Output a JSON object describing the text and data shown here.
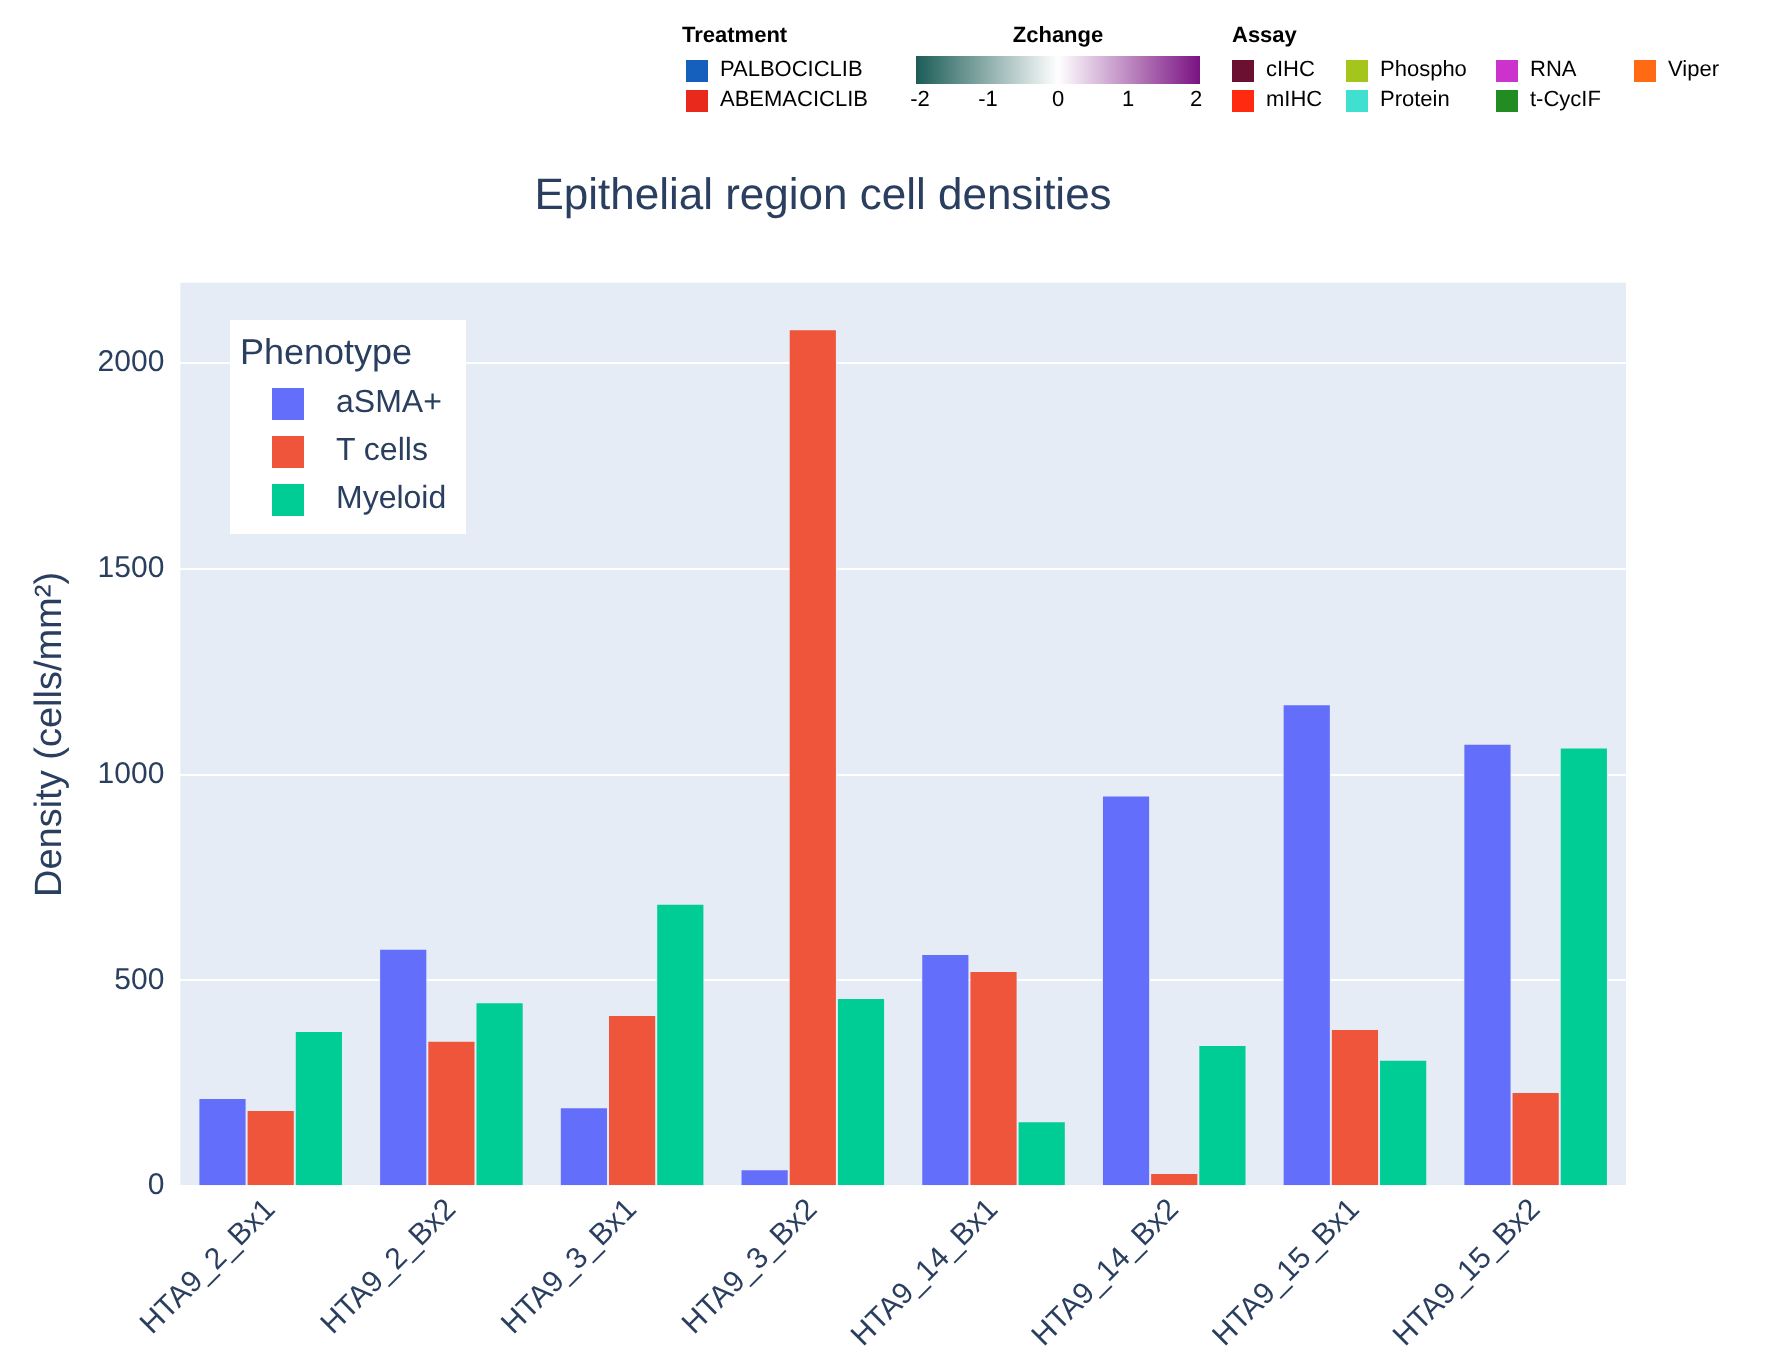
{
  "chart_data": {
    "type": "bar",
    "title": "Epithelial region cell densities",
    "ylabel": "Density (cells/mm²)",
    "legend_title": "Phenotype",
    "categories": [
      "HTA9_2_Bx1",
      "HTA9_2_Bx2",
      "HTA9_3_Bx1",
      "HTA9_3_Bx2",
      "HTA9_14_Bx1",
      "HTA9_14_Bx2",
      "HTA9_15_Bx1",
      "HTA9_15_Bx2"
    ],
    "series": [
      {
        "name": "aSMA+",
        "color": "#636efa",
        "values": [
          214,
          577,
          192,
          41,
          564,
          949,
          1171,
          1075
        ]
      },
      {
        "name": "T cells",
        "color": "#ef553b",
        "values": [
          185,
          353,
          416,
          2082,
          523,
          32,
          382,
          229
        ]
      },
      {
        "name": "Myeloid",
        "color": "#00cc96",
        "values": [
          377,
          447,
          686,
          457,
          158,
          343,
          307,
          1066
        ]
      }
    ],
    "ylim": [
      0,
      2195
    ],
    "yticks": [
      0,
      500,
      1000,
      1500,
      2000
    ],
    "grid": "y",
    "legend": "top left",
    "annotations": [
      "Treatment",
      "PALBOCICLIB",
      "ABEMACICLIB",
      "Zchange",
      "-2",
      "-1",
      "0",
      "1",
      "2",
      "Assay",
      "cIHC",
      "mIHC",
      "Phospho",
      "Protein",
      "RNA",
      "t-CycIF",
      "Viper"
    ]
  }
}
